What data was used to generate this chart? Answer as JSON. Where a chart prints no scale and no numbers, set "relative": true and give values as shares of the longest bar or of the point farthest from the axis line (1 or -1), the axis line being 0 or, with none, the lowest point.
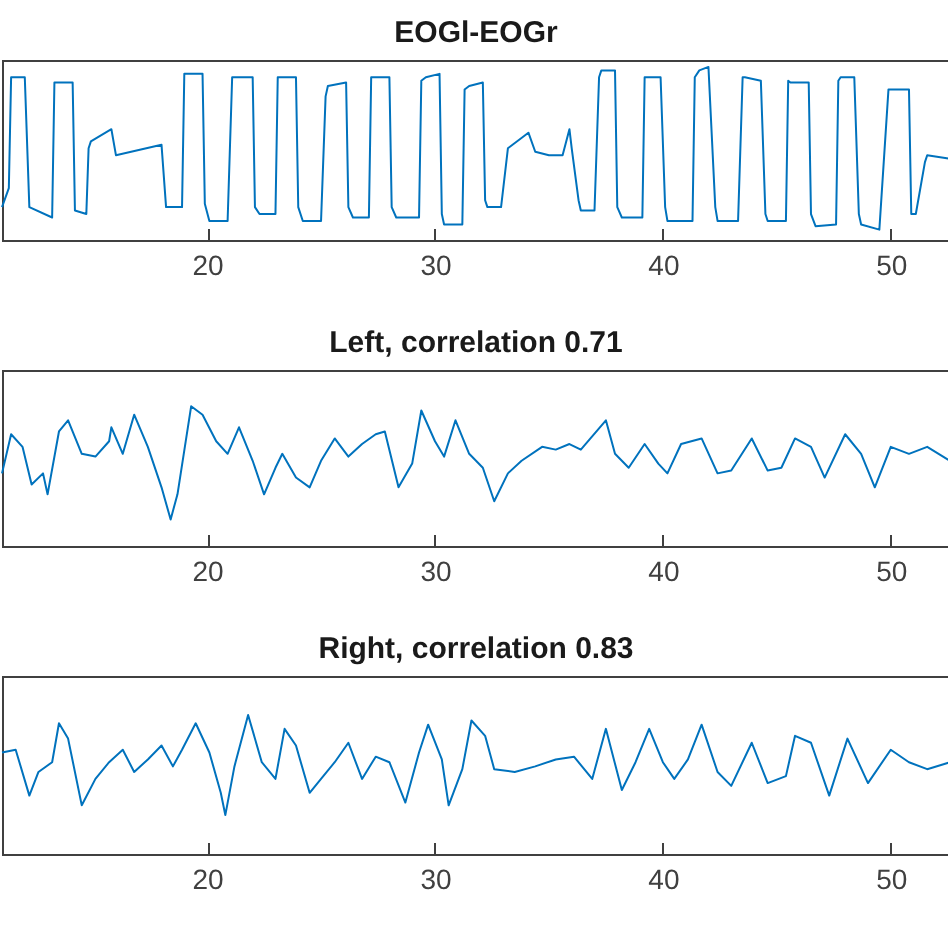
{
  "chart_data": [
    {
      "type": "line",
      "title": "EOGl-EOGr",
      "relative": true,
      "xlim": [
        11,
        52.6
      ],
      "xticks": [
        20,
        30,
        40,
        50
      ],
      "x": [
        11.0,
        11.3,
        11.4,
        12.0,
        12.2,
        13.2,
        13.3,
        13.5,
        14.1,
        14.2,
        14.7,
        14.8,
        14.9,
        15.8,
        16.0,
        18.0,
        18.2,
        18.9,
        19.0,
        19.2,
        19.8,
        19.9,
        20.1,
        20.9,
        21.1,
        21.2,
        22.0,
        22.1,
        22.3,
        23.0,
        23.1,
        23.3,
        23.9,
        24.0,
        24.2,
        25.0,
        25.2,
        25.3,
        26.1,
        26.2,
        26.4,
        27.1,
        27.2,
        27.4,
        28.0,
        28.1,
        28.3,
        29.3,
        29.4,
        29.6,
        30.2,
        30.3,
        30.4,
        31.2,
        31.3,
        31.5,
        32.1,
        32.2,
        32.3,
        32.9,
        33.2,
        34.1,
        34.4,
        35.0,
        35.6,
        35.9,
        36.0,
        36.3,
        36.4,
        37.0,
        37.2,
        37.3,
        37.9,
        38.0,
        38.2,
        39.1,
        39.2,
        39.4,
        39.9,
        40.1,
        40.2,
        41.3,
        41.4,
        41.6,
        42.0,
        42.3,
        42.4,
        43.3,
        43.5,
        43.6,
        44.3,
        44.5,
        44.6,
        45.4,
        45.5,
        45.6,
        46.4,
        46.5,
        46.7,
        47.6,
        47.7,
        47.8,
        48.4,
        48.6,
        48.7,
        49.5,
        49.9,
        50.0,
        50.8,
        50.9,
        51.1,
        51.5,
        51.6,
        52.6
      ],
      "series": [
        {
          "color": "#0072bd",
          "values": [
            0.19,
            0.3,
            0.94,
            0.94,
            0.19,
            0.13,
            0.91,
            0.91,
            0.91,
            0.17,
            0.15,
            0.53,
            0.57,
            0.64,
            0.49,
            0.55,
            0.19,
            0.19,
            0.96,
            0.96,
            0.96,
            0.21,
            0.11,
            0.11,
            0.94,
            0.94,
            0.94,
            0.19,
            0.15,
            0.15,
            0.94,
            0.94,
            0.94,
            0.19,
            0.11,
            0.11,
            0.83,
            0.89,
            0.91,
            0.19,
            0.13,
            0.13,
            0.94,
            0.94,
            0.94,
            0.19,
            0.13,
            0.13,
            0.92,
            0.94,
            0.96,
            0.15,
            0.09,
            0.09,
            0.87,
            0.89,
            0.91,
            0.23,
            0.19,
            0.19,
            0.53,
            0.62,
            0.51,
            0.49,
            0.49,
            0.64,
            0.53,
            0.23,
            0.17,
            0.17,
            0.94,
            0.98,
            0.98,
            0.19,
            0.13,
            0.13,
            0.94,
            0.94,
            0.94,
            0.19,
            0.11,
            0.11,
            0.94,
            0.98,
            1.0,
            0.19,
            0.11,
            0.11,
            0.94,
            0.94,
            0.92,
            0.15,
            0.11,
            0.11,
            0.92,
            0.91,
            0.91,
            0.15,
            0.08,
            0.09,
            0.92,
            0.94,
            0.94,
            0.15,
            0.09,
            0.06,
            0.87,
            0.87,
            0.87,
            0.15,
            0.15,
            0.45,
            0.49,
            0.47
          ]
        }
      ]
    },
    {
      "type": "line",
      "title": "Left, correlation 0.71",
      "relative": true,
      "xlim": [
        11,
        52.6
      ],
      "xticks": [
        20,
        30,
        40,
        50
      ],
      "x": [
        11.0,
        11.4,
        11.9,
        12.3,
        12.8,
        13.0,
        13.5,
        13.9,
        14.5,
        15.1,
        15.7,
        15.8,
        16.3,
        16.8,
        17.4,
        18.0,
        18.4,
        18.7,
        19.3,
        19.8,
        20.4,
        20.9,
        21.4,
        22.0,
        22.5,
        23.0,
        23.3,
        23.9,
        24.5,
        25.0,
        25.6,
        26.2,
        26.8,
        27.4,
        27.8,
        28.4,
        29.0,
        29.4,
        30.0,
        30.4,
        30.9,
        31.5,
        32.1,
        32.6,
        33.2,
        33.8,
        34.7,
        35.3,
        35.9,
        36.4,
        37.5,
        37.9,
        38.5,
        39.2,
        39.8,
        40.2,
        40.8,
        41.7,
        42.4,
        43.0,
        43.9,
        44.6,
        45.2,
        45.8,
        46.5,
        47.1,
        48.0,
        48.7,
        49.3,
        50.0,
        50.8,
        51.6,
        52.6
      ],
      "series": [
        {
          "color": "#0072bd",
          "values": [
            0.52,
            0.8,
            0.71,
            0.44,
            0.52,
            0.37,
            0.82,
            0.9,
            0.66,
            0.64,
            0.75,
            0.85,
            0.66,
            0.94,
            0.71,
            0.42,
            0.19,
            0.37,
            1.0,
            0.94,
            0.75,
            0.66,
            0.85,
            0.61,
            0.37,
            0.56,
            0.66,
            0.49,
            0.42,
            0.61,
            0.77,
            0.64,
            0.73,
            0.8,
            0.82,
            0.42,
            0.59,
            0.97,
            0.75,
            0.64,
            0.9,
            0.66,
            0.56,
            0.32,
            0.52,
            0.61,
            0.71,
            0.69,
            0.73,
            0.69,
            0.9,
            0.66,
            0.56,
            0.73,
            0.59,
            0.52,
            0.73,
            0.77,
            0.52,
            0.54,
            0.77,
            0.54,
            0.56,
            0.77,
            0.71,
            0.49,
            0.8,
            0.66,
            0.42,
            0.71,
            0.66,
            0.71,
            0.61
          ]
        }
      ]
    },
    {
      "type": "line",
      "title": "Right, correlation 0.83",
      "relative": true,
      "xlim": [
        11,
        52.6
      ],
      "xticks": [
        20,
        30,
        40,
        50
      ],
      "x": [
        11.0,
        11.6,
        12.2,
        12.6,
        13.2,
        13.5,
        13.9,
        14.5,
        15.1,
        15.7,
        16.3,
        16.8,
        17.4,
        18.0,
        18.5,
        18.9,
        19.5,
        20.1,
        20.6,
        20.8,
        21.2,
        21.8,
        22.4,
        23.0,
        23.4,
        23.9,
        24.5,
        25.0,
        25.6,
        26.2,
        26.8,
        27.4,
        28.0,
        28.7,
        29.3,
        29.7,
        30.3,
        30.6,
        31.2,
        31.6,
        32.2,
        32.6,
        33.5,
        34.4,
        35.3,
        36.1,
        36.9,
        37.5,
        38.2,
        38.8,
        39.4,
        40.0,
        40.5,
        41.1,
        41.7,
        42.4,
        43.0,
        43.9,
        44.6,
        45.4,
        45.8,
        46.5,
        47.3,
        48.1,
        49.0,
        50.0,
        50.8,
        51.6,
        52.6
      ],
      "series": [
        {
          "color": "#0072bd",
          "values": [
            0.73,
            0.75,
            0.42,
            0.59,
            0.66,
            0.94,
            0.83,
            0.35,
            0.54,
            0.66,
            0.75,
            0.59,
            0.68,
            0.78,
            0.63,
            0.75,
            0.94,
            0.73,
            0.44,
            0.28,
            0.63,
            1.0,
            0.66,
            0.54,
            0.9,
            0.78,
            0.44,
            0.54,
            0.66,
            0.8,
            0.54,
            0.7,
            0.66,
            0.37,
            0.73,
            0.93,
            0.68,
            0.35,
            0.61,
            0.96,
            0.85,
            0.61,
            0.59,
            0.63,
            0.68,
            0.7,
            0.54,
            0.9,
            0.46,
            0.66,
            0.9,
            0.66,
            0.54,
            0.68,
            0.93,
            0.59,
            0.49,
            0.8,
            0.51,
            0.56,
            0.85,
            0.8,
            0.42,
            0.83,
            0.51,
            0.75,
            0.66,
            0.61,
            0.66
          ]
        }
      ]
    }
  ]
}
